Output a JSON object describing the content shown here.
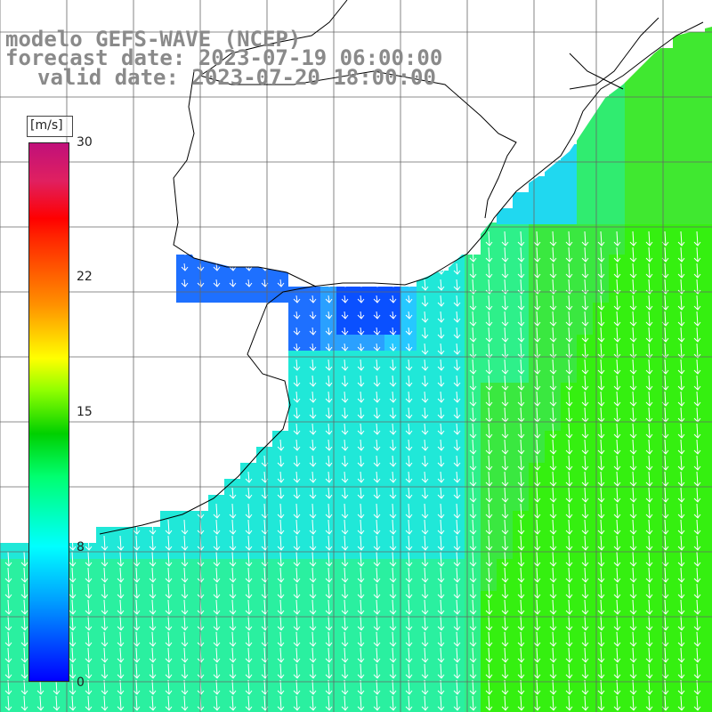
{
  "title": {
    "line1": "modelo GEFS-WAVE (NCEP)",
    "line2": "forecast date: 2023-07-19 06:00:00",
    "line3": "valid date: 2023-07-20 18:00:00"
  },
  "colorbar": {
    "unit": "[m/s]",
    "ticks": [
      "30",
      "22",
      "15",
      "8",
      "0"
    ],
    "colors": [
      "#0000ff",
      "#00ffff",
      "#00d000",
      "#ffff00",
      "#ff0000",
      "#c0107a"
    ]
  },
  "map": {
    "land_color": "#ffffff",
    "grid_color": "#555555",
    "coastline_color": "#000000",
    "arrow_color": "#ffffff",
    "wind_direction": "north-to-south"
  }
}
